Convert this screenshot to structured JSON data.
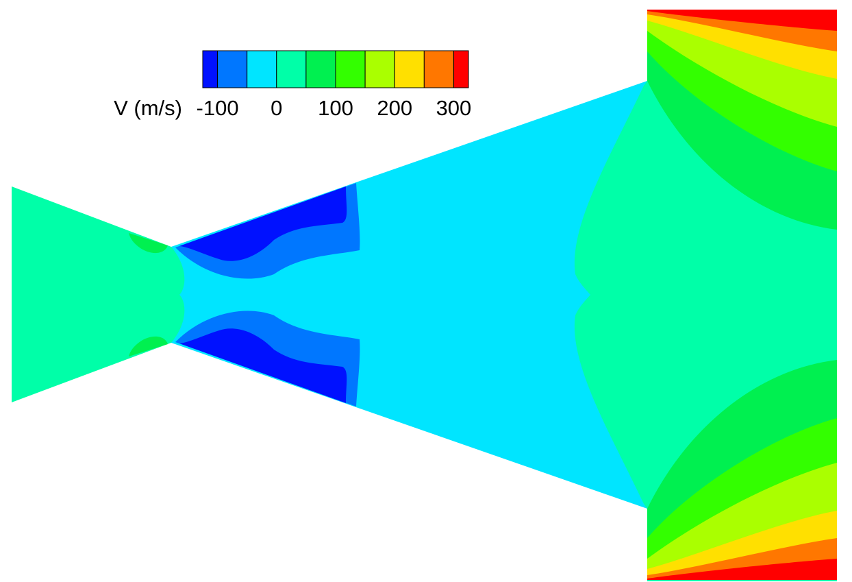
{
  "chart_data": {
    "type": "contour",
    "colorbar": {
      "label": "V (m/s)",
      "levels": [
        -125,
        -100,
        -50,
        0,
        50,
        100,
        150,
        200,
        250,
        300,
        325
      ],
      "colors": [
        "#0011ff",
        "#0077ff",
        "#00e5ff",
        "#00ffa8",
        "#00f050",
        "#33ff00",
        "#aaff00",
        "#ffe000",
        "#ff7700",
        "#ff0000"
      ],
      "ticks": [
        -100,
        0,
        100,
        200,
        300
      ]
    }
  }
}
